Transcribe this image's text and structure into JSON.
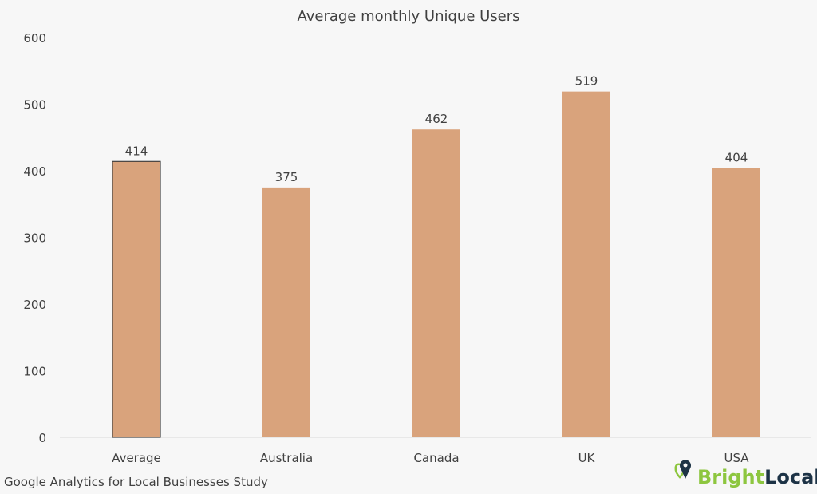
{
  "chart_data": {
    "type": "bar",
    "title": "Average monthly Unique Users",
    "categories": [
      "Average",
      "Australia",
      "Canada",
      "UK",
      "USA"
    ],
    "values": [
      414,
      375,
      462,
      519,
      404
    ],
    "ylim": [
      0,
      600
    ],
    "yticks": [
      0,
      100,
      200,
      300,
      400,
      500,
      600
    ],
    "xlabel": "",
    "ylabel": "",
    "grid": false,
    "legend": "none",
    "bar_color": "#d9a37c",
    "highlight_outline": "Average"
  },
  "footer": {
    "source": "Google Analytics for Local Businesses Study",
    "logo_text_bright": "Bright",
    "logo_text_local": "Local",
    "logo_colors": {
      "bright": "#8dc63f",
      "local": "#1d3346"
    }
  }
}
